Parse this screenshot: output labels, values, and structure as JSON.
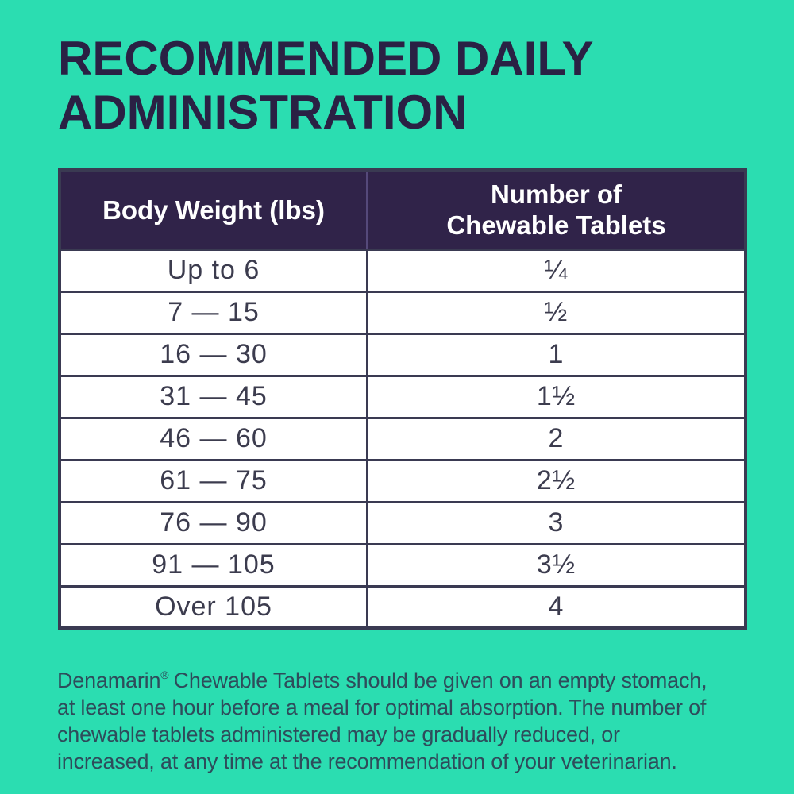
{
  "colors": {
    "background": "#2BDDB1",
    "title_text": "#2A2144",
    "table_header_bg": "#302349",
    "table_header_text": "#FFFFFF",
    "table_border": "#3A3A52",
    "cell_text": "#3C3C4E",
    "footer_text": "#2E4C5B"
  },
  "title": {
    "line1": "RECOMMENDED DAILY",
    "line2": "ADMINISTRATION"
  },
  "table": {
    "header": {
      "col1": "Body Weight (lbs)",
      "col2_line1": "Number of",
      "col2_line2": "Chewable Tablets"
    },
    "rows": [
      {
        "weight": "Up to 6",
        "tablets": "¼"
      },
      {
        "weight": "7 — 15",
        "tablets": "½"
      },
      {
        "weight": "16 — 30",
        "tablets": "1"
      },
      {
        "weight": "31 — 45",
        "tablets": "1½"
      },
      {
        "weight": "46 — 60",
        "tablets": "2"
      },
      {
        "weight": "61 — 75",
        "tablets": "2½"
      },
      {
        "weight": "76 — 90",
        "tablets": "3"
      },
      {
        "weight": "91 — 105",
        "tablets": "3½"
      },
      {
        "weight": "Over 105",
        "tablets": "4"
      }
    ]
  },
  "footer": {
    "brand": "Denamarin",
    "registered_mark": "®",
    "line1_rest": "Chewable Tablets should be given on an empty stomach,",
    "lines": [
      "at least one hour before a meal for optimal absorption. The number of",
      "chewable tablets administered may be gradually reduced, or",
      "increased, at any time at the recommendation of your veterinarian."
    ]
  },
  "chart_data": {
    "type": "table",
    "title": "RECOMMENDED DAILY ADMINISTRATION",
    "columns": [
      "Body Weight (lbs)",
      "Number of Chewable Tablets"
    ],
    "rows": [
      [
        "Up to 6",
        "¼"
      ],
      [
        "7 — 15",
        "½"
      ],
      [
        "16 — 30",
        "1"
      ],
      [
        "31 — 45",
        "1½"
      ],
      [
        "46 — 60",
        "2"
      ],
      [
        "61 — 75",
        "2½"
      ],
      [
        "76 — 90",
        "3"
      ],
      [
        "91 — 105",
        "3½"
      ],
      [
        "Over 105",
        "4"
      ]
    ]
  }
}
